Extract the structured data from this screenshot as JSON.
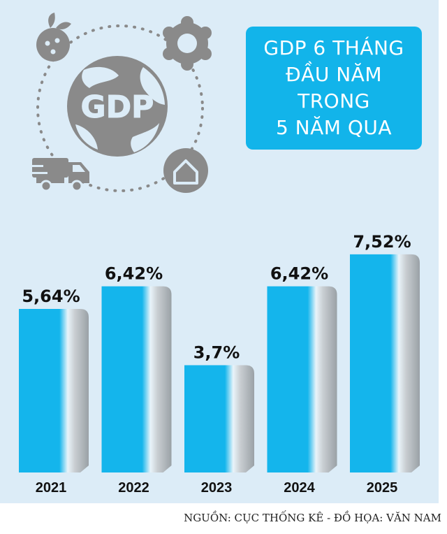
{
  "title": {
    "lines": [
      "GDP 6 THÁNG",
      "ĐẦU NĂM",
      "TRONG",
      "5 NĂM QUA"
    ]
  },
  "illustration": {
    "center_icon": "globe-gdp-icon",
    "center_label": "GDP",
    "icons": [
      "agriculture-icon",
      "industry-gear-icon",
      "transport-truck-icon",
      "housing-icon"
    ]
  },
  "colors": {
    "bar_main": "#14b5ec",
    "bar_shade": "#b9bfc4",
    "background": "#dcecf7",
    "title_box": "#12b4ea",
    "icon_gray": "#8a8a8a"
  },
  "chart_data": {
    "type": "bar",
    "title": "GDP 6 THÁNG ĐẦU NĂM TRONG 5 NĂM QUA",
    "categories": [
      "2021",
      "2022",
      "2023",
      "2024",
      "2025"
    ],
    "values": [
      5.64,
      6.42,
      3.7,
      6.42,
      7.52
    ],
    "value_labels": [
      "5,64%",
      "6,42%",
      "3,7%",
      "6,42%",
      "7,52%"
    ],
    "unit": "%",
    "xlabel": "",
    "ylabel": "",
    "grid": false,
    "legend": "none"
  },
  "source": "NGUỒN: CỤC THỐNG KÊ - ĐỒ HỌA: VĂN NAM"
}
